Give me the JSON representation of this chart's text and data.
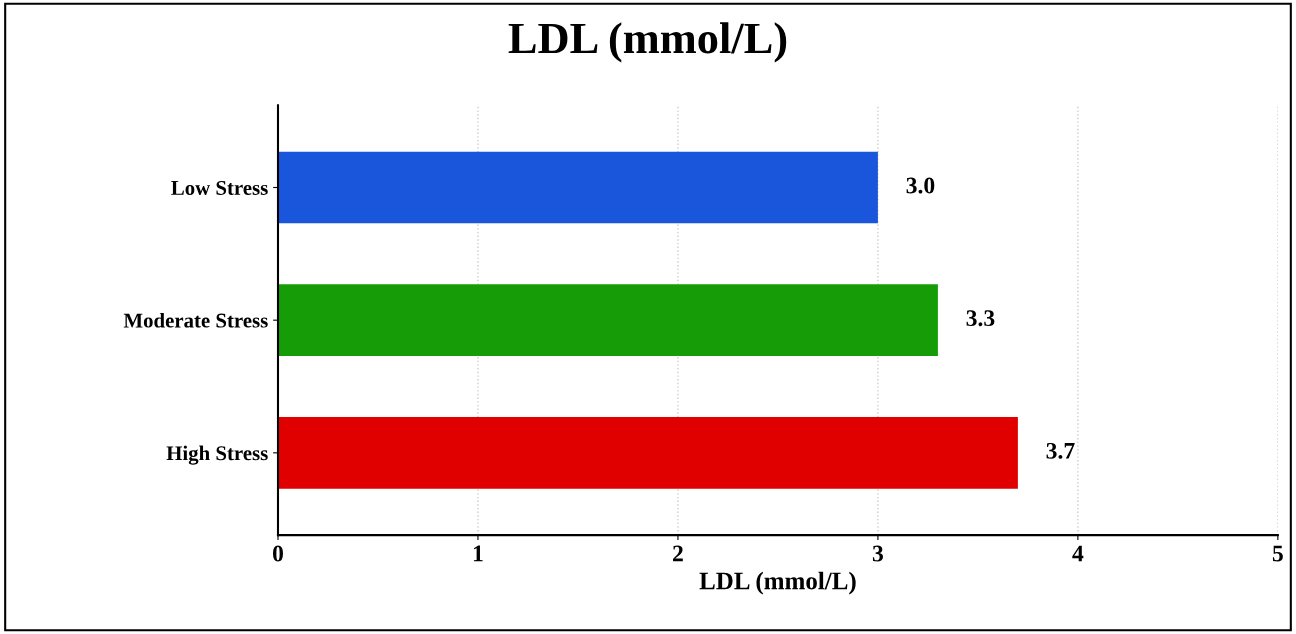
{
  "chart_data": {
    "type": "bar",
    "orientation": "horizontal",
    "title": "LDL (mmol/L)",
    "xlabel": "LDL (mmol/L)",
    "categories": [
      "Low Stress",
      "Moderate Stress",
      "High Stress"
    ],
    "values": [
      3.0,
      3.3,
      3.7
    ],
    "colors": [
      "#1a56db",
      "#169c06",
      "#e00000"
    ],
    "value_labels": [
      "3.0",
      "3.3",
      "3.7"
    ],
    "xlim": [
      0,
      5
    ],
    "xticks": [
      0,
      1,
      2,
      3,
      4,
      5
    ],
    "grid": "x"
  }
}
